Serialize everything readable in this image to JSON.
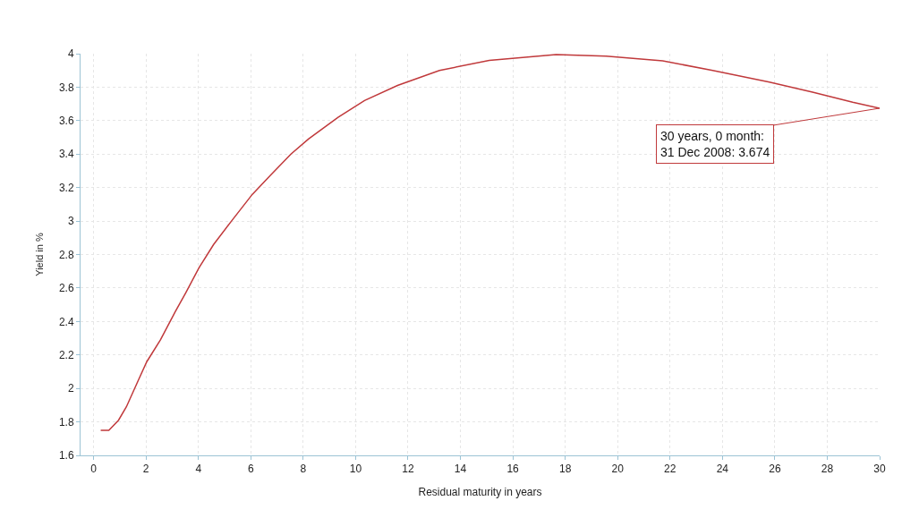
{
  "chart_data": {
    "type": "line",
    "xlabel": "Residual maturity in years",
    "ylabel": "Yield in %",
    "x": [
      0.27,
      0.58,
      0.95,
      1.25,
      1.71,
      2.03,
      2.55,
      3.12,
      3.51,
      4.02,
      4.58,
      5.26,
      6.06,
      6.73,
      7.53,
      8.2,
      9.33,
      10.34,
      11.6,
      13.2,
      15.1,
      17.65,
      19.56,
      21.72,
      23.63,
      25.79,
      27.44,
      28.97,
      30
    ],
    "series": [
      {
        "color": "#c0393b",
        "values": [
          1.75,
          1.75,
          1.81,
          1.89,
          2.05,
          2.16,
          2.29,
          2.46,
          2.57,
          2.72,
          2.86,
          3.0,
          3.16,
          3.27,
          3.4,
          3.49,
          3.62,
          3.72,
          3.81,
          3.9,
          3.96,
          3.995,
          3.985,
          3.957,
          3.9,
          3.83,
          3.77,
          3.71,
          3.674
        ]
      }
    ],
    "xlim": [
      -0.5,
      30
    ],
    "ylim": [
      1.6,
      4
    ],
    "xticks": [
      0,
      2,
      4,
      6,
      8,
      10,
      12,
      14,
      16,
      18,
      20,
      22,
      24,
      26,
      28,
      30
    ],
    "yticks": [
      1.6,
      1.8,
      2,
      2.2,
      2.4,
      2.6,
      2.8,
      3,
      3.2,
      3.4,
      3.6,
      3.8,
      4
    ],
    "grid": true,
    "legend": false,
    "marker": "none",
    "line_style": "solid",
    "annotations": [
      {
        "text": "30 years, 0 month:\n31 Dec 2008: 3.674",
        "x": 30,
        "y": 3.674
      }
    ]
  }
}
